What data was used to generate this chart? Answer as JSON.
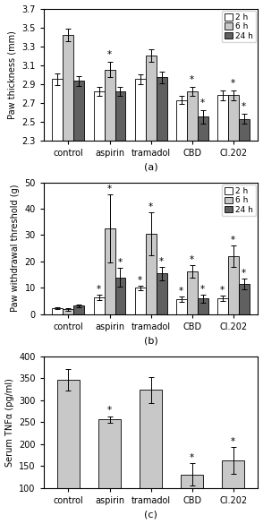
{
  "categories": [
    "control",
    "aspirin",
    "tramadol",
    "CBD",
    "Cl.202"
  ],
  "subplot_a": {
    "title": "(a)",
    "ylabel": "Paw thickness (mm)",
    "ylim": [
      2.3,
      3.7
    ],
    "yticks": [
      2.3,
      2.5,
      2.7,
      2.9,
      3.1,
      3.3,
      3.5,
      3.7
    ],
    "values_2h": [
      2.95,
      2.82,
      2.95,
      2.73,
      2.78
    ],
    "values_6h": [
      3.42,
      3.05,
      3.2,
      2.82,
      2.78
    ],
    "values_24h": [
      2.93,
      2.82,
      2.97,
      2.55,
      2.53
    ],
    "err_2h": [
      0.06,
      0.05,
      0.05,
      0.04,
      0.05
    ],
    "err_6h": [
      0.07,
      0.08,
      0.07,
      0.05,
      0.05
    ],
    "err_24h": [
      0.05,
      0.05,
      0.06,
      0.07,
      0.05
    ],
    "sig_2h": [
      false,
      false,
      false,
      false,
      false
    ],
    "sig_6h": [
      false,
      true,
      false,
      true,
      true
    ],
    "sig_24h": [
      false,
      false,
      false,
      true,
      true
    ]
  },
  "subplot_b": {
    "title": "(b)",
    "ylabel": "Paw withdrawal threshold (g)",
    "ylim": [
      0,
      50
    ],
    "yticks": [
      0,
      10,
      20,
      30,
      40,
      50
    ],
    "values_2h": [
      2.2,
      6.5,
      10.0,
      5.8,
      6.0
    ],
    "values_6h": [
      1.8,
      32.5,
      30.5,
      16.2,
      22.0
    ],
    "values_24h": [
      3.2,
      14.0,
      15.5,
      6.0,
      11.5
    ],
    "err_2h": [
      0.3,
      1.0,
      0.8,
      1.0,
      1.0
    ],
    "err_6h": [
      0.5,
      13.0,
      8.0,
      2.5,
      4.0
    ],
    "err_24h": [
      0.5,
      3.5,
      2.5,
      1.5,
      2.0
    ],
    "sig_2h": [
      false,
      true,
      true,
      true,
      true
    ],
    "sig_6h": [
      false,
      true,
      true,
      true,
      true
    ],
    "sig_24h": [
      false,
      true,
      true,
      true,
      true
    ]
  },
  "subplot_c": {
    "title": "(c)",
    "ylabel": "Serum TNFα (pg/ml)",
    "ylim": [
      100,
      400
    ],
    "yticks": [
      100,
      150,
      200,
      250,
      300,
      350,
      400
    ],
    "values": [
      346,
      256,
      323,
      131,
      163
    ],
    "err": [
      25,
      7,
      30,
      25,
      30
    ],
    "sig": [
      false,
      true,
      false,
      true,
      true
    ]
  },
  "colors": {
    "2h": "#ffffff",
    "6h": "#c8c8c8",
    "24h": "#606060"
  },
  "bar_edge": "#000000",
  "bar_width": 0.26,
  "legend_labels": [
    "2 h",
    "6 h",
    "24 h"
  ],
  "background": "#ffffff"
}
